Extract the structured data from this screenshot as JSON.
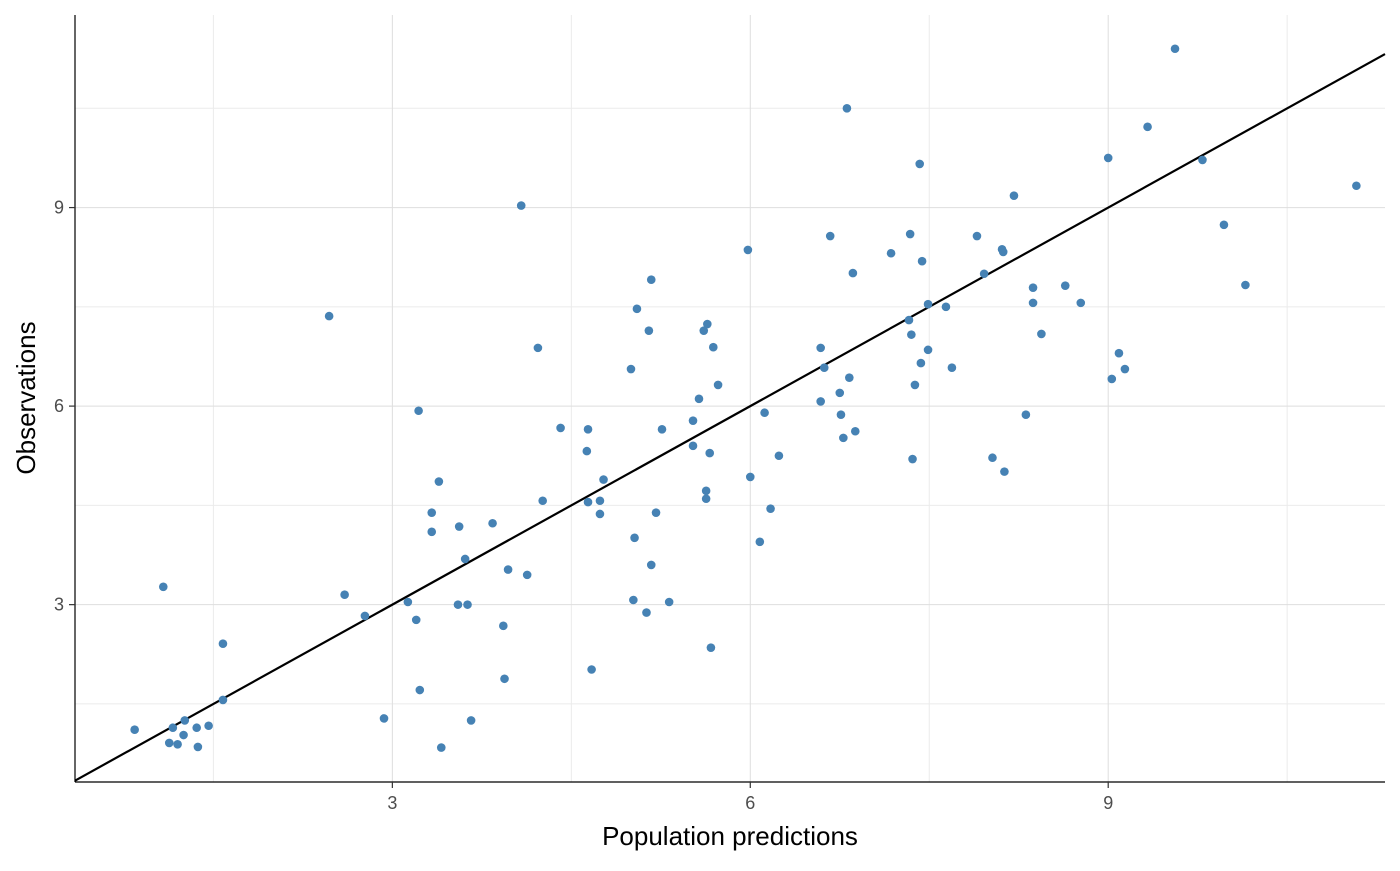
{
  "chart_data": {
    "type": "scatter",
    "title": "",
    "xlabel": "Population predictions",
    "ylabel": "Observations",
    "xlim": [
      0.34,
      11.32
    ],
    "ylim": [
      0.32,
      11.91
    ],
    "x_ticks": [
      3,
      6,
      9
    ],
    "y_ticks": [
      3,
      6,
      9
    ],
    "x_minor": [
      1.5,
      4.5,
      7.5,
      10.5
    ],
    "y_minor": [
      1.5,
      4.5,
      7.5,
      10.5
    ],
    "grid": true,
    "point_color": "#4682B4",
    "reference_line": {
      "type": "identity",
      "slope": 1,
      "intercept": 0,
      "color": "#000000"
    },
    "points": [
      [
        0.84,
        1.11
      ],
      [
        1.08,
        3.27
      ],
      [
        1.13,
        0.91
      ],
      [
        1.16,
        1.14
      ],
      [
        1.2,
        0.89
      ],
      [
        1.25,
        1.03
      ],
      [
        1.26,
        1.25
      ],
      [
        1.36,
        1.14
      ],
      [
        1.37,
        0.85
      ],
      [
        1.46,
        1.17
      ],
      [
        1.58,
        2.41
      ],
      [
        1.58,
        1.56
      ],
      [
        2.47,
        7.36
      ],
      [
        2.6,
        3.15
      ],
      [
        2.77,
        2.83
      ],
      [
        2.93,
        1.28
      ],
      [
        3.13,
        3.04
      ],
      [
        3.2,
        2.77
      ],
      [
        3.22,
        5.93
      ],
      [
        3.23,
        1.71
      ],
      [
        3.33,
        4.39
      ],
      [
        3.33,
        4.1
      ],
      [
        3.39,
        4.86
      ],
      [
        3.41,
        0.84
      ],
      [
        3.55,
        3.0
      ],
      [
        3.56,
        4.18
      ],
      [
        3.61,
        3.69
      ],
      [
        3.63,
        3.0
      ],
      [
        3.66,
        1.25
      ],
      [
        3.84,
        4.23
      ],
      [
        3.93,
        2.68
      ],
      [
        3.94,
        1.88
      ],
      [
        3.97,
        3.53
      ],
      [
        4.08,
        9.03
      ],
      [
        4.13,
        3.45
      ],
      [
        4.22,
        6.88
      ],
      [
        4.26,
        4.57
      ],
      [
        4.41,
        5.67
      ],
      [
        4.63,
        5.32
      ],
      [
        4.64,
        4.55
      ],
      [
        4.64,
        5.65
      ],
      [
        4.67,
        2.02
      ],
      [
        4.74,
        4.37
      ],
      [
        4.74,
        4.57
      ],
      [
        4.77,
        4.89
      ],
      [
        5.0,
        6.56
      ],
      [
        5.02,
        3.07
      ],
      [
        5.03,
        4.01
      ],
      [
        5.05,
        7.47
      ],
      [
        5.13,
        2.88
      ],
      [
        5.15,
        7.14
      ],
      [
        5.17,
        7.91
      ],
      [
        5.17,
        3.6
      ],
      [
        5.21,
        4.39
      ],
      [
        5.26,
        5.65
      ],
      [
        5.32,
        3.04
      ],
      [
        5.52,
        5.4
      ],
      [
        5.52,
        5.78
      ],
      [
        5.57,
        6.11
      ],
      [
        5.61,
        7.14
      ],
      [
        5.63,
        4.72
      ],
      [
        5.63,
        4.6
      ],
      [
        5.64,
        7.24
      ],
      [
        5.66,
        5.29
      ],
      [
        5.67,
        2.35
      ],
      [
        5.69,
        6.89
      ],
      [
        5.73,
        6.32
      ],
      [
        5.98,
        8.36
      ],
      [
        6.0,
        4.93
      ],
      [
        6.08,
        3.95
      ],
      [
        6.12,
        5.9
      ],
      [
        6.17,
        4.45
      ],
      [
        6.24,
        5.25
      ],
      [
        6.59,
        6.88
      ],
      [
        6.59,
        6.07
      ],
      [
        6.62,
        6.58
      ],
      [
        6.67,
        8.57
      ],
      [
        6.75,
        6.2
      ],
      [
        6.76,
        5.87
      ],
      [
        6.78,
        5.52
      ],
      [
        6.81,
        10.5
      ],
      [
        6.83,
        6.43
      ],
      [
        6.86,
        8.01
      ],
      [
        6.88,
        5.62
      ],
      [
        7.18,
        8.31
      ],
      [
        7.33,
        7.3
      ],
      [
        7.34,
        8.6
      ],
      [
        7.35,
        7.08
      ],
      [
        7.36,
        5.2
      ],
      [
        7.38,
        6.32
      ],
      [
        7.42,
        9.66
      ],
      [
        7.43,
        6.65
      ],
      [
        7.44,
        8.19
      ],
      [
        7.49,
        7.54
      ],
      [
        7.49,
        6.85
      ],
      [
        7.64,
        7.5
      ],
      [
        7.69,
        6.58
      ],
      [
        7.9,
        8.57
      ],
      [
        7.96,
        8.0
      ],
      [
        8.03,
        5.22
      ],
      [
        8.11,
        8.37
      ],
      [
        8.12,
        8.33
      ],
      [
        8.13,
        5.01
      ],
      [
        8.21,
        9.18
      ],
      [
        8.31,
        5.87
      ],
      [
        8.37,
        7.79
      ],
      [
        8.37,
        7.56
      ],
      [
        8.44,
        7.09
      ],
      [
        8.64,
        7.82
      ],
      [
        8.77,
        7.56
      ],
      [
        9.0,
        9.75
      ],
      [
        9.03,
        6.41
      ],
      [
        9.09,
        6.8
      ],
      [
        9.14,
        6.56
      ],
      [
        9.33,
        10.22
      ],
      [
        9.56,
        11.4
      ],
      [
        9.79,
        9.72
      ],
      [
        9.97,
        8.74
      ],
      [
        10.15,
        7.83
      ],
      [
        11.08,
        9.33
      ]
    ]
  }
}
